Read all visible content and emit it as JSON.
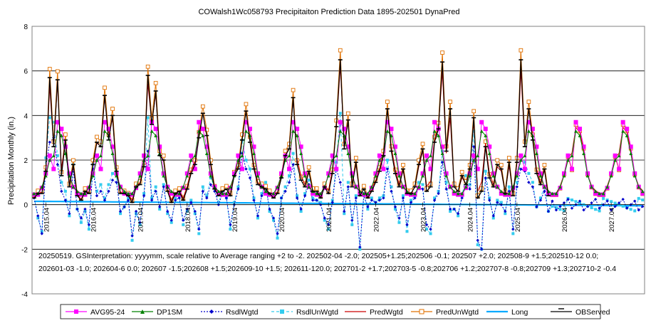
{
  "chart_data": {
    "type": "line",
    "title": "COWalsh1Wc058793 Precipitaiton Prediction Data 1895-202501 DynaPred",
    "ylabel": "Precipitation Monthly (in.)",
    "xlabel": "",
    "ylim": [
      -4,
      8
    ],
    "y_ticks": [
      "-4",
      "-2",
      "0",
      "2",
      "4",
      "6",
      "8"
    ],
    "grid": "horizontal",
    "legend_position": "bottom",
    "x_tick_labels": [
      "2015.04",
      "2016.04",
      "2017.04",
      "2018.04",
      "2019.04",
      "2020.04",
      "2021.04",
      "2022.04",
      "2023.04",
      "2024.04",
      "2025.04",
      "2026.04",
      "2027.04"
    ],
    "x_start": "2015.01",
    "x_end": "2027.12",
    "note_lines": [
      "20250519. GSInterpretation: yyyymm, scale relative to Average ranging +2 to -2.  202502-04 -2.0; 202505+1.25;202506 -0.1; 202507 +2.0; 202508-9 +1.5;202510-12 0.0;",
      "202601-03 -1.0; 202604-6 0.0; 202607 -1.5;202608 +1.5;202609-10 +1.5; 202611-120.0; 202701-2 +1.7;202703-5 -0.8;202706 +1.2;202707-8 -0.8;202709 +1.3;202710-2 -0.4"
    ],
    "series": [
      {
        "name": "AVG95-24",
        "color": "#ff00ff",
        "marker": "square",
        "monthly_pattern": [
          0.45,
          0.45,
          0.75,
          1.4,
          2.2,
          1.6,
          3.7,
          3.4,
          2.6,
          1.4,
          0.8,
          0.5
        ]
      },
      {
        "name": "DP1SM",
        "color": "#008000",
        "marker": "triangle",
        "monthly_pattern": [
          0.5,
          0.5,
          0.8,
          1.3,
          2.0,
          2.2,
          3.3,
          3.1,
          2.3,
          1.3,
          0.8,
          0.6
        ]
      },
      {
        "name": "RsdlWgtd",
        "color": "#0000cc",
        "marker": "diamond",
        "dash": "dotted",
        "values_2015_2025": [
          0.3,
          -0.5,
          -1.3,
          1.7,
          2.8,
          3.0,
          1.8,
          0.6,
          0.2,
          -0.4,
          1.6,
          -0.2,
          -0.6,
          -0.2,
          -0.9,
          1.6,
          0.4,
          0.6,
          0.2,
          0.6,
          1.1,
          1.0,
          -0.3,
          -0.1,
          0.2,
          -1.4,
          -0.3,
          -0.8,
          0.4,
          2.4,
          0.2,
          0.6,
          -0.1,
          0.8,
          -0.3,
          -0.7,
          0.2,
          0.3,
          -0.7,
          -0.2,
          0.1,
          -0.3,
          -1.1,
          0.6,
          0.3,
          0.9,
          0.6,
          0.0,
          0.5,
          0.3,
          -0.9,
          0.0,
          0.7,
          2.3,
          1.6,
          1.2,
          0.2,
          -0.5,
          0.4,
          0.8,
          -0.2,
          -0.6,
          -1.3,
          0.3,
          0.6,
          1.0,
          1.8,
          0.3,
          -0.2,
          0.4,
          0.9,
          0.2,
          0.2,
          0.0,
          -0.6,
          -0.9,
          0.1,
          1.6,
          1.0,
          -0.3,
          0.8,
          -0.7,
          0.3,
          -1.9,
          0.4,
          -0.1,
          0.2,
          0.1,
          0.2,
          0.3,
          1.6,
          0.6,
          -0.1,
          -0.6,
          0.3,
          -0.9,
          0.1,
          0.3,
          0.8,
          0.7,
          -0.9,
          -1.1,
          0.2,
          0.5,
          1.9,
          0.7,
          -0.2,
          -0.2,
          -0.4,
          0.3,
          1.0,
          0.7,
          2.6,
          -1.6,
          -2.0,
          1.2,
          0.2,
          -0.5,
          0.1,
          0.0,
          -0.3,
          0.6,
          -1.1,
          0.8,
          1.6,
          1.5,
          1.0,
          0.8,
          -0.1,
          0.2,
          0.6,
          -0.3
        ]
      },
      {
        "name": "RsdlUnWgtd",
        "color": "#33ccee",
        "marker": "square",
        "dash": "dashed",
        "values_2015_2025": [
          0.4,
          -0.6,
          -1.2,
          2.1,
          3.9,
          3.7,
          2.2,
          1.0,
          0.6,
          -0.5,
          1.8,
          -0.2,
          -0.8,
          -0.3,
          -1.1,
          1.8,
          0.6,
          0.9,
          0.3,
          0.9,
          1.4,
          1.3,
          -0.4,
          -0.1,
          0.3,
          -1.6,
          -0.4,
          -0.9,
          0.5,
          3.9,
          0.3,
          0.8,
          -0.2,
          0.9,
          -0.4,
          -0.8,
          0.3,
          0.4,
          -0.9,
          -0.3,
          0.2,
          -0.4,
          -1.3,
          0.8,
          0.4,
          1.2,
          0.8,
          0.1,
          0.6,
          0.3,
          -1.1,
          0.1,
          0.8,
          2.9,
          2.0,
          1.6,
          0.3,
          -0.6,
          0.5,
          1.0,
          -0.3,
          -0.7,
          -1.5,
          0.3,
          0.8,
          1.3,
          2.3,
          0.4,
          -0.3,
          0.5,
          1.1,
          0.3,
          0.2,
          0.1,
          -0.7,
          -1.1,
          0.2,
          1.9,
          4.1,
          -0.4,
          1.0,
          -0.9,
          0.4,
          -2.0,
          0.5,
          -0.2,
          0.3,
          0.1,
          0.3,
          0.4,
          2.0,
          0.8,
          -0.2,
          -0.8,
          0.4,
          -1.2,
          0.2,
          0.4,
          1.0,
          0.9,
          -1.1,
          -1.3,
          0.3,
          0.6,
          2.4,
          1.0,
          -0.3,
          -0.2,
          -0.5,
          0.4,
          1.3,
          0.9,
          3.3,
          -1.8,
          -2.0,
          1.5,
          0.3,
          -0.6,
          0.2,
          0.1,
          -0.4,
          0.8,
          -1.3,
          1.0,
          2.0,
          1.9,
          1.4,
          1.0,
          -0.1,
          0.3,
          0.8,
          -0.3
        ]
      },
      {
        "name": "PredWgtd",
        "color": "#cc0000",
        "marker": "none"
      },
      {
        "name": "PredUnWgtd",
        "color": "#e07000",
        "marker": "open-square"
      },
      {
        "name": "Long",
        "color": "#00aaff",
        "marker": "none",
        "trend_start": 0.15,
        "trend_end": -0.05
      },
      {
        "name": "OBServed",
        "color": "#000000",
        "marker": "bar-tick",
        "values_2015_2025": [
          0.3,
          0.5,
          0.5,
          1.5,
          5.7,
          2.6,
          5.6,
          1.3,
          2.9,
          0.8,
          1.8,
          0.4,
          0.2,
          0.6,
          0.5,
          1.8,
          2.8,
          2.6,
          4.9,
          2.9,
          4.0,
          1.5,
          0.5,
          0.5,
          0.4,
          0.1,
          0.8,
          0.9,
          1.7,
          5.8,
          3.6,
          5.1,
          2.2,
          2.0,
          0.6,
          0.1,
          0.5,
          0.6,
          0.2,
          0.7,
          1.4,
          1.8,
          3.0,
          4.1,
          3.1,
          1.8,
          0.7,
          0.4,
          0.6,
          0.7,
          0.4,
          1.3,
          1.6,
          2.9,
          4.2,
          2.8,
          1.6,
          0.9,
          0.8,
          0.7,
          0.5,
          0.3,
          0.5,
          1.2,
          2.2,
          2.5,
          4.8,
          1.8,
          1.1,
          0.8,
          1.5,
          0.6,
          0.6,
          0.3,
          0.8,
          0.5,
          1.4,
          3.5,
          6.5,
          2.5,
          3.8,
          0.8,
          1.9,
          0.4,
          0.7,
          0.3,
          0.6,
          1.0,
          1.5,
          2.2,
          4.3,
          2.4,
          1.4,
          0.8,
          1.6,
          0.5,
          0.5,
          0.8,
          1.8,
          2.5,
          0.6,
          0.8,
          2.8,
          3.4,
          6.4,
          2.4,
          4.3,
          0.8,
          0.6,
          1.3,
          0.9,
          1.6,
          3.9,
          0.3,
          0.6,
          2.6,
          1.2,
          0.8,
          1.8,
          1.6,
          0.5,
          1.9,
          0.4,
          1.9,
          6.5,
          2.6,
          4.3,
          2.9,
          1.4,
          0.9,
          1.6,
          0.4
        ]
      }
    ]
  }
}
